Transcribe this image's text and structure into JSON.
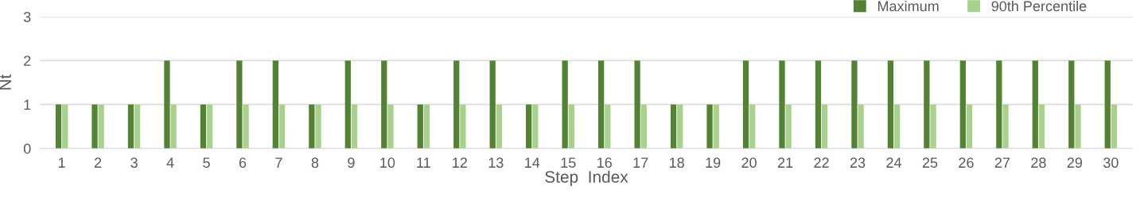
{
  "chart_data": {
    "type": "bar",
    "xlabel": "Step  Index",
    "ylabel": "Nt",
    "categories": [
      "1",
      "2",
      "3",
      "4",
      "5",
      "6",
      "7",
      "8",
      "9",
      "10",
      "11",
      "12",
      "13",
      "14",
      "15",
      "16",
      "17",
      "18",
      "19",
      "20",
      "21",
      "22",
      "23",
      "24",
      "25",
      "26",
      "27",
      "28",
      "29",
      "30"
    ],
    "series": [
      {
        "name": "Maximum",
        "color": "#548235",
        "values": [
          1,
          1,
          1,
          2,
          1,
          2,
          2,
          1,
          2,
          2,
          1,
          2,
          2,
          1,
          2,
          2,
          2,
          1,
          1,
          2,
          2,
          2,
          2,
          2,
          2,
          2,
          2,
          2,
          2,
          2
        ]
      },
      {
        "name": "90th Percentile",
        "color": "#a9d18e",
        "values": [
          1,
          1,
          1,
          1,
          1,
          1,
          1,
          1,
          1,
          1,
          1,
          1,
          1,
          1,
          1,
          1,
          1,
          1,
          1,
          1,
          1,
          1,
          1,
          1,
          1,
          1,
          1,
          1,
          1,
          1
        ]
      }
    ],
    "ylim": [
      0,
      3
    ],
    "yticks": [
      0,
      1,
      2,
      3
    ],
    "grid": "y",
    "legend": "top right"
  }
}
